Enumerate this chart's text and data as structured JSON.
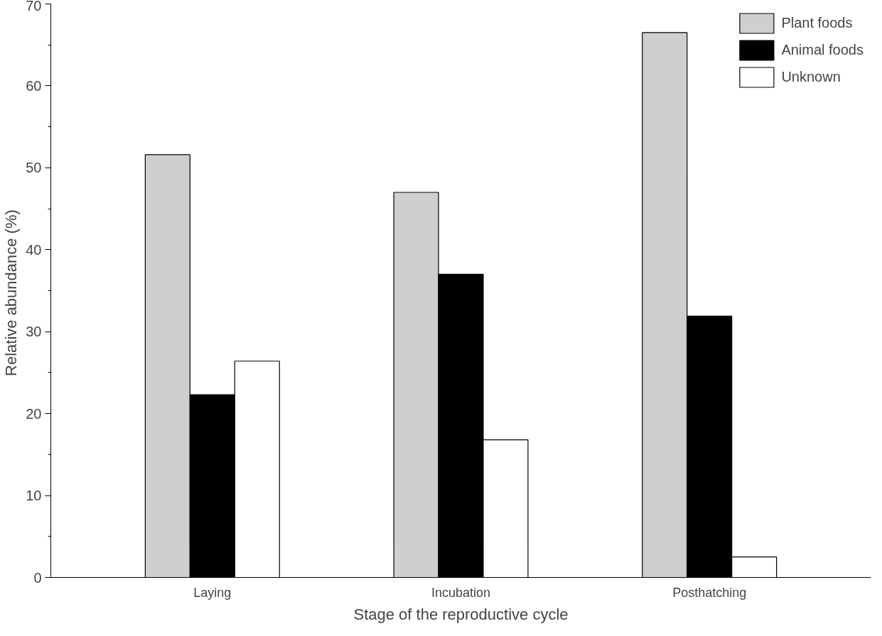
{
  "chart_data": {
    "type": "bar",
    "xlabel": "Stage of the reproductive cycle",
    "ylabel": "Relative abundance  (%)",
    "categories": [
      "Laying",
      "Incubation",
      "Posthatching"
    ],
    "series": [
      {
        "name": "Plant foods",
        "color": "#cfcfcf",
        "values": [
          51.6,
          47.0,
          66.5
        ]
      },
      {
        "name": "Animal foods",
        "color": "#000000",
        "values": [
          22.3,
          37.0,
          31.9
        ]
      },
      {
        "name": "Unknown",
        "color": "#ffffff",
        "values": [
          26.4,
          16.8,
          2.5
        ]
      }
    ],
    "ylim": [
      0,
      70
    ],
    "yticks": [
      0,
      10,
      20,
      30,
      40,
      50,
      60,
      70
    ],
    "grid": false,
    "legend": "top right"
  }
}
